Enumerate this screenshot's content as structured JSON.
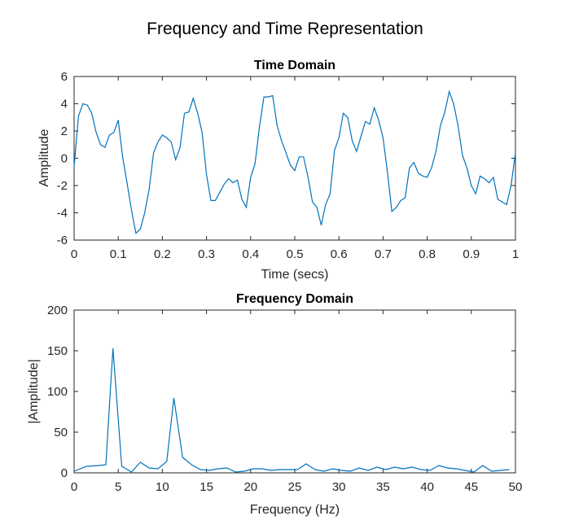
{
  "figure": {
    "title": "Frequency and Time Representation"
  },
  "chart_data": [
    {
      "type": "line",
      "title": "Time Domain",
      "xlabel": "Time (secs)",
      "ylabel": "Amplitude",
      "xlim": [
        0,
        1
      ],
      "ylim": [
        -6,
        6
      ],
      "xticks": [
        0,
        0.1,
        0.2,
        0.3,
        0.4,
        0.5,
        0.6,
        0.7,
        0.8,
        0.9,
        1
      ],
      "xtick_labels": [
        "0",
        "0.1",
        "0.2",
        "0.3",
        "0.4",
        "0.5",
        "0.6",
        "0.7",
        "0.8",
        "0.9",
        "1"
      ],
      "yticks": [
        -6,
        -4,
        -2,
        0,
        2,
        4,
        6
      ],
      "ytick_labels": [
        "-6",
        "-4",
        "-2",
        "0",
        "2",
        "4",
        "6"
      ],
      "grid": false,
      "line_color": "#0072BD",
      "series": [
        {
          "x": [
            0,
            0.01,
            0.02,
            0.03,
            0.04,
            0.05,
            0.06,
            0.07,
            0.08,
            0.09,
            0.1,
            0.11,
            0.12,
            0.13,
            0.14,
            0.15,
            0.16,
            0.17,
            0.18,
            0.19,
            0.2,
            0.21,
            0.22,
            0.23,
            0.24,
            0.25,
            0.26,
            0.27,
            0.28,
            0.29,
            0.3,
            0.31,
            0.32,
            0.33,
            0.34,
            0.35,
            0.36,
            0.37,
            0.38,
            0.39,
            0.4,
            0.41,
            0.42,
            0.43,
            0.44,
            0.45,
            0.46,
            0.47,
            0.48,
            0.49,
            0.5,
            0.51,
            0.52,
            0.53,
            0.54,
            0.55,
            0.56,
            0.57,
            0.58,
            0.59,
            0.6,
            0.61,
            0.62,
            0.63,
            0.64,
            0.65,
            0.66,
            0.67,
            0.68,
            0.69,
            0.7,
            0.71,
            0.72,
            0.73,
            0.74,
            0.75,
            0.76,
            0.77,
            0.78,
            0.79,
            0.8,
            0.81,
            0.82,
            0.83,
            0.84,
            0.85,
            0.86,
            0.87,
            0.88,
            0.89,
            0.9,
            0.91,
            0.92,
            0.93,
            0.94,
            0.95,
            0.96,
            0.97,
            0.98,
            0.99,
            1
          ],
          "values": [
            -0.6,
            3.1,
            4.0,
            3.9,
            3.3,
            1.9,
            1.0,
            0.8,
            1.7,
            1.9,
            2.8,
            0.1,
            -1.8,
            -3.8,
            -5.5,
            -5.2,
            -4.0,
            -2.3,
            0.4,
            1.2,
            1.7,
            1.5,
            1.2,
            -0.1,
            0.8,
            3.3,
            3.4,
            4.4,
            3.3,
            1.9,
            -1.2,
            -3.1,
            -3.1,
            -2.5,
            -1.9,
            -1.5,
            -1.8,
            -1.6,
            -3.0,
            -3.6,
            -1.4,
            -0.4,
            2.3,
            4.5,
            4.5,
            4.6,
            2.4,
            1.3,
            0.4,
            -0.5,
            -0.9,
            0.1,
            0.1,
            -1.4,
            -3.2,
            -3.6,
            -4.9,
            -3.4,
            -2.6,
            0.6,
            1.5,
            3.3,
            3.0,
            1.3,
            0.5,
            1.6,
            2.7,
            2.5,
            3.7,
            2.8,
            1.5,
            -1.0,
            -3.9,
            -3.6,
            -3.1,
            -2.9,
            -0.7,
            -0.3,
            -1.1,
            -1.3,
            -1.4,
            -0.7,
            0.5,
            2.4,
            3.4,
            4.9,
            4.0,
            2.4,
            0.2,
            -0.7,
            -2.0,
            -2.6,
            -1.3,
            -1.5,
            -1.8,
            -1.4,
            -3.0,
            -3.2,
            -3.4,
            -2.0,
            0.4
          ]
        }
      ]
    },
    {
      "type": "line",
      "title": "Frequency Domain",
      "xlabel": "Frequency (Hz)",
      "ylabel": "|Amplitude|",
      "xlim": [
        0,
        50
      ],
      "ylim": [
        0,
        200
      ],
      "xticks": [
        0,
        5,
        10,
        15,
        20,
        25,
        30,
        35,
        40,
        45,
        50
      ],
      "xtick_labels": [
        "0",
        "5",
        "10",
        "15",
        "20",
        "25",
        "30",
        "35",
        "40",
        "45",
        "50"
      ],
      "yticks": [
        0,
        50,
        100,
        150,
        200
      ],
      "ytick_labels": [
        "0",
        "50",
        "100",
        "150",
        "200"
      ],
      "grid": false,
      "line_color": "#0072BD",
      "series": [
        {
          "x": [
            0,
            1.4,
            2.8,
            3.6,
            4.4,
            5.4,
            6.5,
            7.5,
            8.5,
            9.5,
            10.5,
            11.3,
            12.3,
            13.3,
            14.3,
            15.3,
            16.3,
            17.3,
            18.3,
            19.3,
            20.3,
            21.3,
            22.3,
            23.3,
            24.3,
            25.3,
            26.3,
            27.3,
            28.3,
            29.3,
            30.3,
            31.3,
            32.3,
            33.3,
            34.3,
            35.3,
            36.3,
            37.3,
            38.3,
            39.3,
            40.3,
            41.3,
            42.3,
            43.3,
            44.3,
            45.3,
            46.3,
            47.3,
            48.3,
            49.3
          ],
          "values": [
            2,
            8,
            9,
            10,
            153,
            8,
            1,
            13,
            6,
            5,
            14,
            92,
            19,
            10,
            4,
            3,
            5,
            6,
            1,
            2,
            5,
            5,
            3,
            4,
            4,
            4,
            11,
            4,
            2,
            5,
            3,
            2,
            6,
            3,
            7,
            4,
            7,
            5,
            7,
            4,
            3,
            9,
            6,
            5,
            3,
            1,
            9,
            2,
            3,
            4
          ]
        }
      ]
    }
  ]
}
